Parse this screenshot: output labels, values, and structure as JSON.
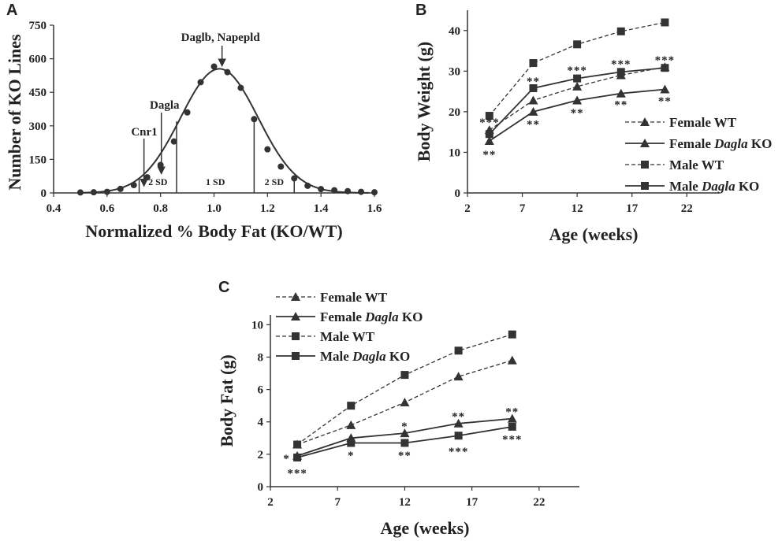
{
  "chart_data": [
    {
      "panel": "A",
      "type": "scatter",
      "xlabel": "Normalized % Body Fat (KO/WT)",
      "ylabel": "Number of KO Lines",
      "xlim": [
        0.4,
        1.6
      ],
      "ylim": [
        0,
        750
      ],
      "xticks": [
        "0.4",
        "0.6",
        "0.8",
        "1.0",
        "1.2",
        "1.4",
        "1.6"
      ],
      "yticks": [
        "0",
        "150",
        "300",
        "450",
        "600",
        "750"
      ],
      "points": {
        "x": [
          0.5,
          0.55,
          0.6,
          0.65,
          0.7,
          0.75,
          0.8,
          0.85,
          0.9,
          0.95,
          1.0,
          1.05,
          1.1,
          1.15,
          1.2,
          1.25,
          1.3,
          1.35,
          1.4,
          1.45,
          1.5,
          1.55,
          1.6
        ],
        "y": [
          2,
          3,
          5,
          18,
          35,
          70,
          125,
          230,
          360,
          495,
          565,
          540,
          470,
          330,
          195,
          118,
          65,
          32,
          17,
          12,
          8,
          5,
          3
        ]
      },
      "fit": {
        "type": "normal",
        "mean": 1.02,
        "sd": 0.145,
        "peak": 555
      },
      "sd_lines": {
        "x": [
          0.72,
          0.86,
          1.15,
          1.3
        ],
        "labels": [
          "2 SD",
          "1 SD",
          "2 SD"
        ],
        "label_x": [
          0.79,
          1.005,
          1.225
        ]
      },
      "annotations": [
        {
          "text": "Daglb, Napepld",
          "x": 1.03,
          "y": 560
        },
        {
          "text": "Dagla",
          "x": 0.815,
          "y": 322
        },
        {
          "text": "Cnr1",
          "x": 0.745,
          "y": 115
        }
      ]
    },
    {
      "panel": "B",
      "type": "line",
      "xlabel": "Age (weeks)",
      "ylabel": "Body Weight (g)",
      "xlim": [
        2,
        25
      ],
      "ylim": [
        0,
        45
      ],
      "xticks": [
        "2",
        "7",
        "12",
        "17",
        "22"
      ],
      "yticks": [
        "0",
        "10",
        "20",
        "30",
        "40"
      ],
      "x": [
        4,
        8,
        12,
        16,
        20
      ],
      "series": [
        {
          "name": "Female WT",
          "italic": "",
          "suffix": "",
          "marker": "triangle",
          "dash": true,
          "values": [
            15.5,
            22.8,
            26.2,
            29.0,
            31.0
          ]
        },
        {
          "name": "Female ",
          "italic": "Dagla",
          "suffix": " KO",
          "marker": "triangle",
          "dash": false,
          "values": [
            12.8,
            20.0,
            22.8,
            24.5,
            25.5
          ]
        },
        {
          "name": "Male WT",
          "italic": "",
          "suffix": "",
          "marker": "square",
          "dash": true,
          "values": [
            19.0,
            32.0,
            36.6,
            39.8,
            42.0
          ]
        },
        {
          "name": "Male ",
          "italic": "Dagla",
          "suffix": " KO",
          "marker": "square",
          "dash": false,
          "values": [
            14.5,
            25.8,
            28.2,
            29.8,
            30.8
          ]
        }
      ],
      "stars": [
        {
          "text": "***",
          "x": 4,
          "y": 17.5
        },
        {
          "text": "**",
          "x": 4,
          "y": 9.5
        },
        {
          "text": "**",
          "x": 8,
          "y": 27.5
        },
        {
          "text": "**",
          "x": 8,
          "y": 17.0
        },
        {
          "text": "***",
          "x": 12,
          "y": 30.3
        },
        {
          "text": "**",
          "x": 12,
          "y": 19.8
        },
        {
          "text": "***",
          "x": 16,
          "y": 31.8
        },
        {
          "text": "**",
          "x": 16,
          "y": 21.8
        },
        {
          "text": "***",
          "x": 20,
          "y": 32.8
        },
        {
          "text": "**",
          "x": 20,
          "y": 22.7
        }
      ],
      "legend_position": "center-right"
    },
    {
      "panel": "C",
      "type": "line",
      "xlabel": "Age (weeks)",
      "ylabel": "Body Fat (g)",
      "xlim": [
        2,
        25
      ],
      "ylim": [
        0,
        10.6
      ],
      "xticks": [
        "2",
        "7",
        "12",
        "17",
        "22"
      ],
      "yticks": [
        "0",
        "2",
        "4",
        "6",
        "8",
        "10"
      ],
      "x": [
        4,
        8,
        12,
        16,
        20
      ],
      "series": [
        {
          "name": "Female WT",
          "italic": "",
          "suffix": "",
          "marker": "triangle",
          "dash": true,
          "values": [
            2.6,
            3.8,
            5.2,
            6.8,
            7.8
          ]
        },
        {
          "name": "Female ",
          "italic": "Dagla",
          "suffix": " KO",
          "marker": "triangle",
          "dash": false,
          "values": [
            1.9,
            3.0,
            3.3,
            3.9,
            4.2
          ]
        },
        {
          "name": "Male WT",
          "italic": "",
          "suffix": "",
          "marker": "square",
          "dash": true,
          "values": [
            2.6,
            5.0,
            6.9,
            8.4,
            9.4
          ]
        },
        {
          "name": "Male ",
          "italic": "Dagla",
          "suffix": " KO",
          "marker": "square",
          "dash": false,
          "values": [
            1.8,
            2.7,
            2.7,
            3.15,
            3.7
          ]
        }
      ],
      "stars": [
        {
          "text": "*",
          "x": 3.2,
          "y": 1.75
        },
        {
          "text": "***",
          "x": 4,
          "y": 0.85
        },
        {
          "text": "*",
          "x": 8,
          "y": 1.95
        },
        {
          "text": "*",
          "x": 12,
          "y": 3.75
        },
        {
          "text": "**",
          "x": 12,
          "y": 1.95
        },
        {
          "text": "**",
          "x": 16,
          "y": 4.35
        },
        {
          "text": "***",
          "x": 16,
          "y": 2.2
        },
        {
          "text": "**",
          "x": 20,
          "y": 4.65
        },
        {
          "text": "***",
          "x": 20,
          "y": 2.95
        }
      ],
      "legend_position": "top-left"
    }
  ]
}
